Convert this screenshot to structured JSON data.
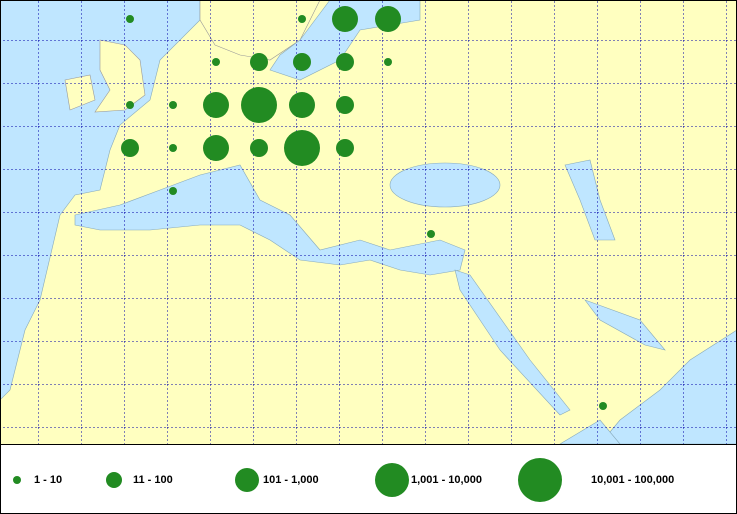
{
  "legend": {
    "classes": [
      "1 - 10",
      "11 - 100",
      "101 - 1,000",
      "1,001 - 10,000",
      "10,001 - 100,000"
    ]
  },
  "points": [
    {
      "lon": 0,
      "lat": 60,
      "class": 0
    },
    {
      "lon": 20,
      "lat": 60,
      "class": 0
    },
    {
      "lon": 25,
      "lat": 60,
      "class": 2
    },
    {
      "lon": 30,
      "lat": 60,
      "class": 2
    },
    {
      "lon": 10,
      "lat": 55,
      "class": 0
    },
    {
      "lon": 15,
      "lat": 55,
      "class": 1
    },
    {
      "lon": 20,
      "lat": 55,
      "class": 1
    },
    {
      "lon": 25,
      "lat": 55,
      "class": 1
    },
    {
      "lon": 30,
      "lat": 55,
      "class": 0
    },
    {
      "lon": 0,
      "lat": 50,
      "class": 0
    },
    {
      "lon": 5,
      "lat": 50,
      "class": 0
    },
    {
      "lon": 10,
      "lat": 50,
      "class": 2
    },
    {
      "lon": 15,
      "lat": 50,
      "class": 3
    },
    {
      "lon": 20,
      "lat": 50,
      "class": 2
    },
    {
      "lon": 25,
      "lat": 50,
      "class": 1
    },
    {
      "lon": 0,
      "lat": 45,
      "class": 1
    },
    {
      "lon": 5,
      "lat": 45,
      "class": 0
    },
    {
      "lon": 10,
      "lat": 45,
      "class": 2
    },
    {
      "lon": 15,
      "lat": 45,
      "class": 1
    },
    {
      "lon": 20,
      "lat": 45,
      "class": 3
    },
    {
      "lon": 25,
      "lat": 45,
      "class": 1
    },
    {
      "lon": 5,
      "lat": 40,
      "class": 0
    },
    {
      "lon": 35,
      "lat": 35,
      "class": 0
    },
    {
      "lon": 55,
      "lat": 15,
      "class": 0
    }
  ]
}
